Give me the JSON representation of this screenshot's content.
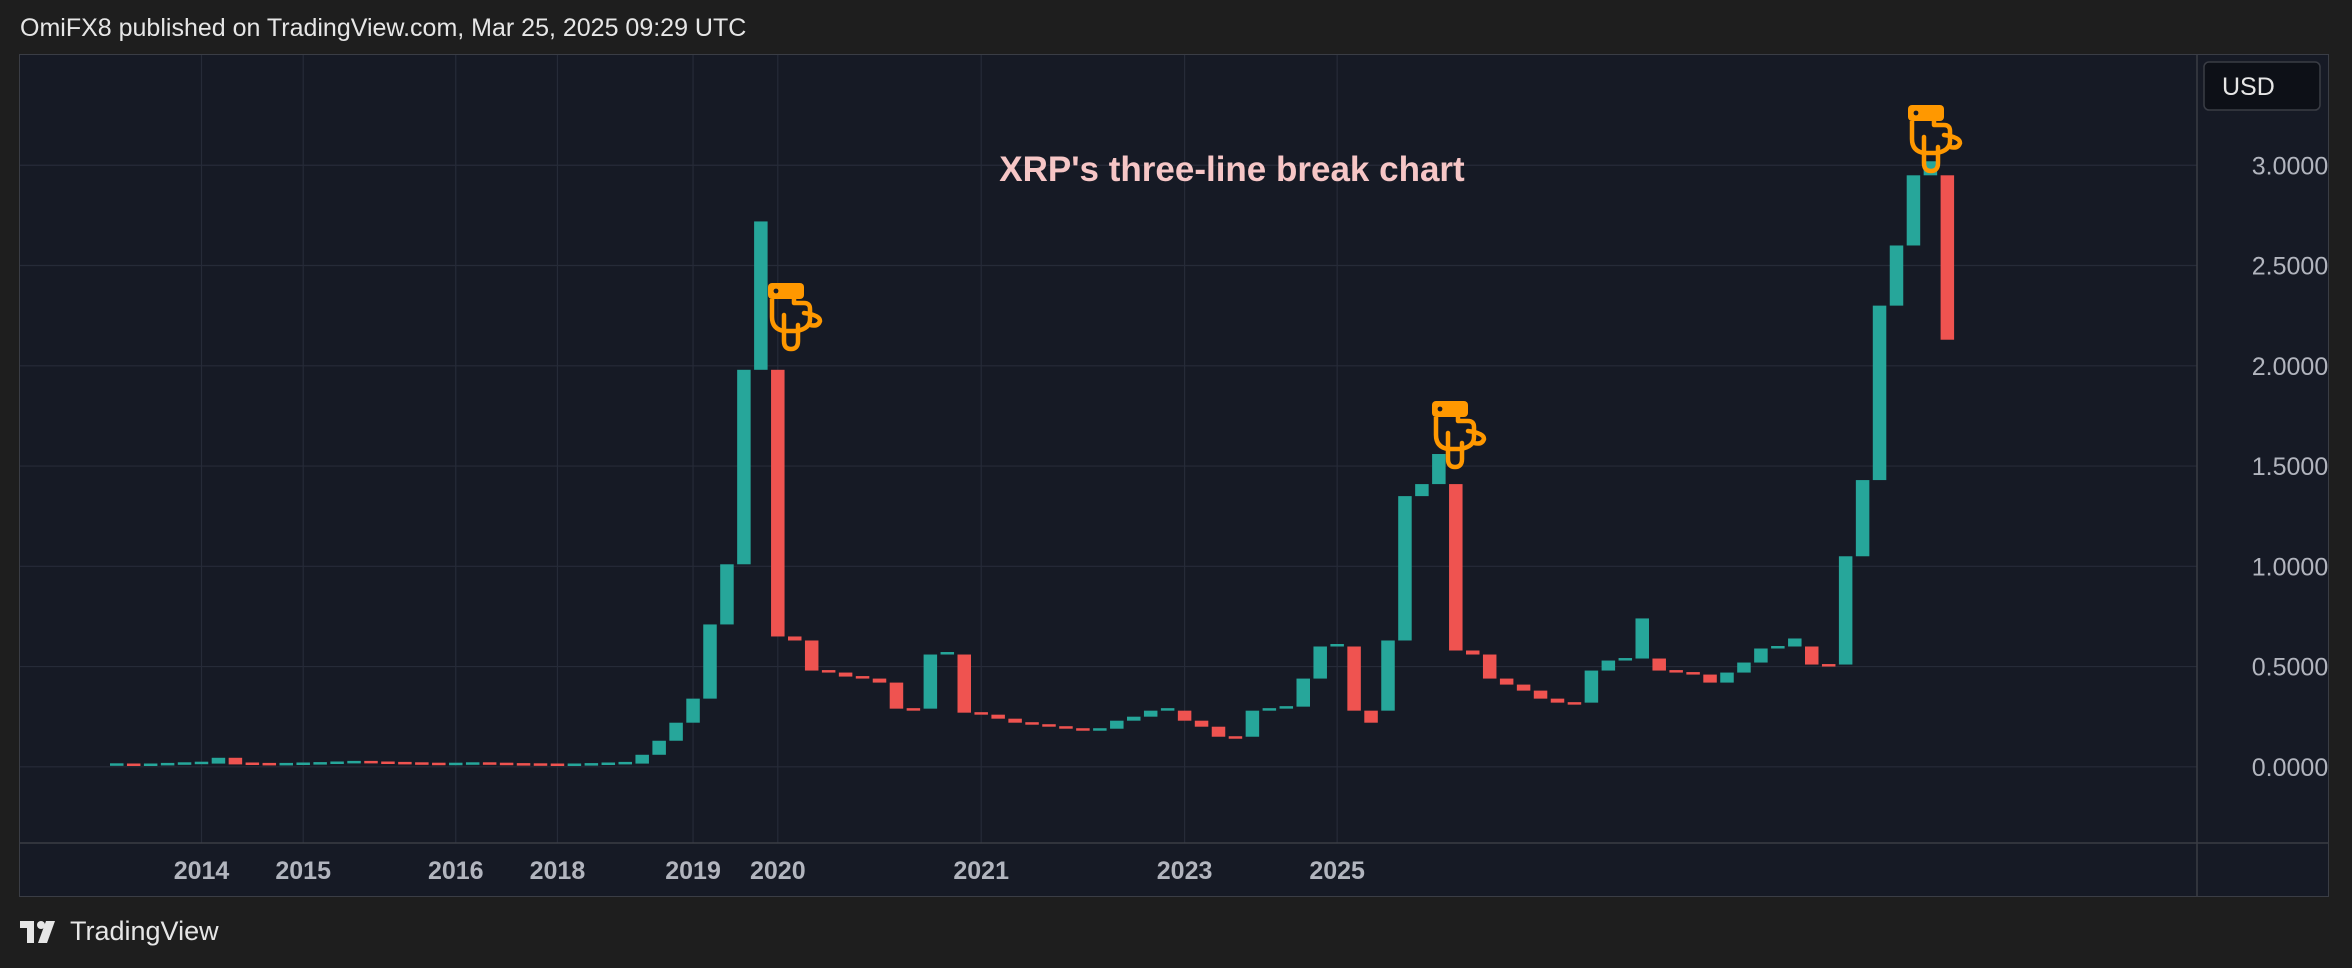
{
  "header": {
    "text": "OmiFX8 published on TradingView.com, Mar 25, 2025 09:29 UTC"
  },
  "footer": {
    "brand": "TradingView"
  },
  "colors": {
    "background": "#161a25",
    "page": "#1e1e1e",
    "up": "#26a69a",
    "down": "#ef5350",
    "grid": "#262b38",
    "axis_text": "#b2b5be",
    "title": "#f6c6c6",
    "marker": "#ff9800"
  },
  "icons": [
    "pointing-hand-icon",
    "tradingview-logo-icon"
  ],
  "chart_data": {
    "type": "three-line-break",
    "title": "XRP's three-line break chart",
    "currency_label": "USD",
    "y_ticks": [
      "0.0000",
      "0.5000",
      "1.0000",
      "1.5000",
      "2.0000",
      "2.5000",
      "3.0000"
    ],
    "ylim": [
      -0.38,
      3.55
    ],
    "x_tick_labels": [
      "2014",
      "2015",
      "2016",
      "2018",
      "2019",
      "2020",
      "2021",
      "2023",
      "2025"
    ],
    "grid": true,
    "markers": [
      {
        "icon": "pointing-hand-icon",
        "near": "2018 peak"
      },
      {
        "icon": "pointing-hand-icon",
        "near": "2021 peak"
      },
      {
        "icon": "pointing-hand-icon",
        "near": "2025 peak"
      }
    ],
    "lines": [
      {
        "open": 0.005,
        "close": 0.008,
        "dir": "up"
      },
      {
        "open": 0.008,
        "close": 0.004,
        "dir": "down"
      },
      {
        "open": 0.004,
        "close": 0.007,
        "dir": "up"
      },
      {
        "open": 0.007,
        "close": 0.01,
        "dir": "up"
      },
      {
        "open": 0.01,
        "close": 0.013,
        "dir": "up"
      },
      {
        "open": 0.013,
        "close": 0.016,
        "dir": "up"
      },
      {
        "open": 0.016,
        "close": 0.045,
        "dir": "up"
      },
      {
        "open": 0.045,
        "close": 0.012,
        "dir": "down"
      },
      {
        "open": 0.012,
        "close": 0.009,
        "dir": "down"
      },
      {
        "open": 0.009,
        "close": 0.007,
        "dir": "down"
      },
      {
        "open": 0.007,
        "close": 0.009,
        "dir": "up"
      },
      {
        "open": 0.009,
        "close": 0.011,
        "dir": "up"
      },
      {
        "open": 0.011,
        "close": 0.014,
        "dir": "up"
      },
      {
        "open": 0.014,
        "close": 0.017,
        "dir": "up"
      },
      {
        "open": 0.017,
        "close": 0.021,
        "dir": "up"
      },
      {
        "open": 0.021,
        "close": 0.017,
        "dir": "down"
      },
      {
        "open": 0.017,
        "close": 0.014,
        "dir": "down"
      },
      {
        "open": 0.014,
        "close": 0.012,
        "dir": "down"
      },
      {
        "open": 0.012,
        "close": 0.01,
        "dir": "down"
      },
      {
        "open": 0.01,
        "close": 0.008,
        "dir": "down"
      },
      {
        "open": 0.008,
        "close": 0.01,
        "dir": "up"
      },
      {
        "open": 0.01,
        "close": 0.013,
        "dir": "up"
      },
      {
        "open": 0.013,
        "close": 0.01,
        "dir": "down"
      },
      {
        "open": 0.01,
        "close": 0.008,
        "dir": "down"
      },
      {
        "open": 0.008,
        "close": 0.006,
        "dir": "down"
      },
      {
        "open": 0.006,
        "close": 0.005,
        "dir": "down"
      },
      {
        "open": 0.005,
        "close": 0.004,
        "dir": "down"
      },
      {
        "open": 0.004,
        "close": 0.006,
        "dir": "up"
      },
      {
        "open": 0.006,
        "close": 0.009,
        "dir": "up"
      },
      {
        "open": 0.009,
        "close": 0.012,
        "dir": "up"
      },
      {
        "open": 0.012,
        "close": 0.016,
        "dir": "up"
      },
      {
        "open": 0.016,
        "close": 0.06,
        "dir": "up"
      },
      {
        "open": 0.06,
        "close": 0.13,
        "dir": "up"
      },
      {
        "open": 0.13,
        "close": 0.22,
        "dir": "up"
      },
      {
        "open": 0.22,
        "close": 0.34,
        "dir": "up"
      },
      {
        "open": 0.34,
        "close": 0.71,
        "dir": "up"
      },
      {
        "open": 0.71,
        "close": 1.01,
        "dir": "up"
      },
      {
        "open": 1.01,
        "close": 1.98,
        "dir": "up"
      },
      {
        "open": 1.98,
        "close": 2.72,
        "dir": "up"
      },
      {
        "open": 1.98,
        "close": 0.65,
        "dir": "down"
      },
      {
        "open": 0.65,
        "close": 0.63,
        "dir": "down"
      },
      {
        "open": 0.63,
        "close": 0.48,
        "dir": "down"
      },
      {
        "open": 0.48,
        "close": 0.47,
        "dir": "down"
      },
      {
        "open": 0.47,
        "close": 0.45,
        "dir": "down"
      },
      {
        "open": 0.45,
        "close": 0.44,
        "dir": "down"
      },
      {
        "open": 0.44,
        "close": 0.42,
        "dir": "down"
      },
      {
        "open": 0.42,
        "close": 0.29,
        "dir": "down"
      },
      {
        "open": 0.29,
        "close": 0.28,
        "dir": "down"
      },
      {
        "open": 0.29,
        "close": 0.56,
        "dir": "up"
      },
      {
        "open": 0.56,
        "close": 0.57,
        "dir": "up"
      },
      {
        "open": 0.56,
        "close": 0.27,
        "dir": "down"
      },
      {
        "open": 0.27,
        "close": 0.26,
        "dir": "down"
      },
      {
        "open": 0.26,
        "close": 0.24,
        "dir": "down"
      },
      {
        "open": 0.24,
        "close": 0.22,
        "dir": "down"
      },
      {
        "open": 0.22,
        "close": 0.21,
        "dir": "down"
      },
      {
        "open": 0.21,
        "close": 0.2,
        "dir": "down"
      },
      {
        "open": 0.2,
        "close": 0.19,
        "dir": "down"
      },
      {
        "open": 0.19,
        "close": 0.18,
        "dir": "down"
      },
      {
        "open": 0.18,
        "close": 0.19,
        "dir": "up"
      },
      {
        "open": 0.19,
        "close": 0.23,
        "dir": "up"
      },
      {
        "open": 0.23,
        "close": 0.25,
        "dir": "up"
      },
      {
        "open": 0.25,
        "close": 0.28,
        "dir": "up"
      },
      {
        "open": 0.28,
        "close": 0.29,
        "dir": "up"
      },
      {
        "open": 0.28,
        "close": 0.23,
        "dir": "down"
      },
      {
        "open": 0.23,
        "close": 0.2,
        "dir": "down"
      },
      {
        "open": 0.2,
        "close": 0.15,
        "dir": "down"
      },
      {
        "open": 0.15,
        "close": 0.14,
        "dir": "down"
      },
      {
        "open": 0.15,
        "close": 0.28,
        "dir": "up"
      },
      {
        "open": 0.28,
        "close": 0.29,
        "dir": "up"
      },
      {
        "open": 0.29,
        "close": 0.3,
        "dir": "up"
      },
      {
        "open": 0.3,
        "close": 0.44,
        "dir": "up"
      },
      {
        "open": 0.44,
        "close": 0.6,
        "dir": "up"
      },
      {
        "open": 0.6,
        "close": 0.61,
        "dir": "up"
      },
      {
        "open": 0.6,
        "close": 0.28,
        "dir": "down"
      },
      {
        "open": 0.28,
        "close": 0.22,
        "dir": "down"
      },
      {
        "open": 0.28,
        "close": 0.63,
        "dir": "up"
      },
      {
        "open": 0.63,
        "close": 1.35,
        "dir": "up"
      },
      {
        "open": 1.35,
        "close": 1.41,
        "dir": "up"
      },
      {
        "open": 1.41,
        "close": 1.56,
        "dir": "up"
      },
      {
        "open": 1.41,
        "close": 0.58,
        "dir": "down"
      },
      {
        "open": 0.58,
        "close": 0.56,
        "dir": "down"
      },
      {
        "open": 0.56,
        "close": 0.44,
        "dir": "down"
      },
      {
        "open": 0.44,
        "close": 0.41,
        "dir": "down"
      },
      {
        "open": 0.41,
        "close": 0.38,
        "dir": "down"
      },
      {
        "open": 0.38,
        "close": 0.34,
        "dir": "down"
      },
      {
        "open": 0.34,
        "close": 0.32,
        "dir": "down"
      },
      {
        "open": 0.32,
        "close": 0.31,
        "dir": "down"
      },
      {
        "open": 0.32,
        "close": 0.48,
        "dir": "up"
      },
      {
        "open": 0.48,
        "close": 0.53,
        "dir": "up"
      },
      {
        "open": 0.53,
        "close": 0.54,
        "dir": "up"
      },
      {
        "open": 0.54,
        "close": 0.74,
        "dir": "up"
      },
      {
        "open": 0.54,
        "close": 0.48,
        "dir": "down"
      },
      {
        "open": 0.48,
        "close": 0.47,
        "dir": "down"
      },
      {
        "open": 0.47,
        "close": 0.46,
        "dir": "down"
      },
      {
        "open": 0.46,
        "close": 0.42,
        "dir": "down"
      },
      {
        "open": 0.42,
        "close": 0.47,
        "dir": "up"
      },
      {
        "open": 0.47,
        "close": 0.52,
        "dir": "up"
      },
      {
        "open": 0.52,
        "close": 0.59,
        "dir": "up"
      },
      {
        "open": 0.59,
        "close": 0.6,
        "dir": "up"
      },
      {
        "open": 0.6,
        "close": 0.64,
        "dir": "up"
      },
      {
        "open": 0.6,
        "close": 0.51,
        "dir": "down"
      },
      {
        "open": 0.51,
        "close": 0.5,
        "dir": "down"
      },
      {
        "open": 0.51,
        "close": 1.05,
        "dir": "up"
      },
      {
        "open": 1.05,
        "close": 1.43,
        "dir": "up"
      },
      {
        "open": 1.43,
        "close": 2.3,
        "dir": "up"
      },
      {
        "open": 2.3,
        "close": 2.6,
        "dir": "up"
      },
      {
        "open": 2.6,
        "close": 2.95,
        "dir": "up"
      },
      {
        "open": 2.95,
        "close": 3.02,
        "dir": "up"
      },
      {
        "open": 2.95,
        "close": 2.13,
        "dir": "down"
      }
    ]
  }
}
